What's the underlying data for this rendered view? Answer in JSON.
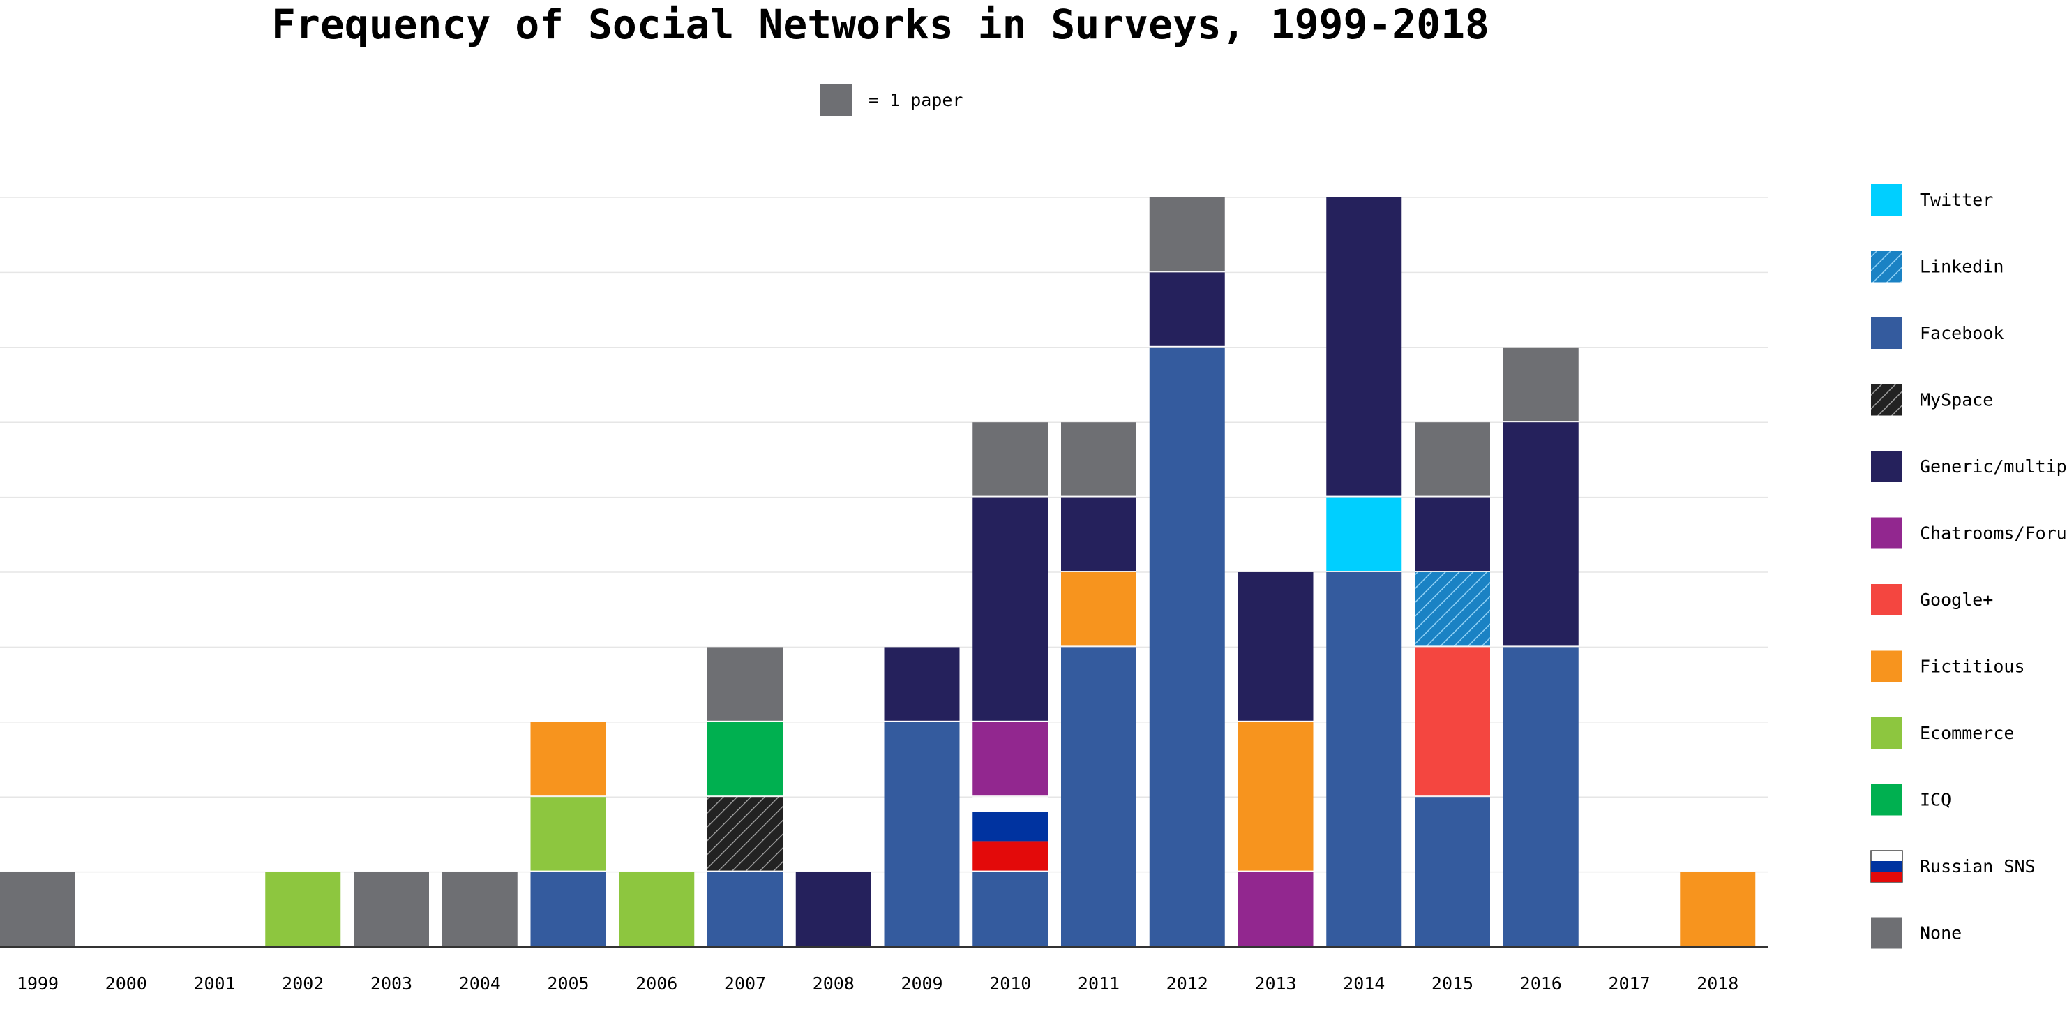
{
  "chart_data": {
    "type": "bar",
    "title": "Frequency of Social Networks in Surveys, 1999-2018",
    "unit_label": "= 1 paper",
    "unit_color": "#6e6f73",
    "categories": [
      "1999",
      "2000",
      "2001",
      "2002",
      "2003",
      "2004",
      "2005",
      "2006",
      "2007",
      "2008",
      "2009",
      "2010",
      "2011",
      "2012",
      "2013",
      "2014",
      "2015",
      "2016",
      "2017",
      "2018"
    ],
    "ylim": [
      0,
      10
    ],
    "grid": true,
    "legend_position": "right",
    "series": [
      {
        "name": "Facebook",
        "color": "#345b9e",
        "pattern": "solid",
        "values": [
          0,
          0,
          0,
          0,
          0,
          0,
          1,
          0,
          1,
          0,
          3,
          1,
          4,
          8,
          0,
          5,
          2,
          4,
          0,
          0
        ]
      },
      {
        "name": "Russian SNS",
        "color": "#e30a0a",
        "pattern": "flag",
        "values": [
          0,
          0,
          0,
          0,
          0,
          0,
          0,
          0,
          0,
          0,
          0,
          1,
          0,
          0,
          0,
          0,
          0,
          0,
          0,
          0
        ]
      },
      {
        "name": "Ecommerce",
        "color": "#8dc63f",
        "pattern": "solid",
        "values": [
          0,
          0,
          0,
          1,
          0,
          0,
          1,
          1,
          0,
          0,
          0,
          0,
          0,
          0,
          0,
          0,
          0,
          0,
          0,
          0
        ]
      },
      {
        "name": "MySpace",
        "color": "#222222",
        "pattern": "hatch-dark",
        "values": [
          0,
          0,
          0,
          0,
          0,
          0,
          0,
          0,
          1,
          0,
          0,
          0,
          0,
          0,
          0,
          0,
          0,
          0,
          0,
          0
        ]
      },
      {
        "name": "Chatrooms/Forums",
        "color": "#92278f",
        "pattern": "solid",
        "values": [
          0,
          0,
          0,
          0,
          0,
          0,
          0,
          0,
          0,
          0,
          0,
          1,
          0,
          0,
          1,
          0,
          0,
          0,
          0,
          0
        ]
      },
      {
        "name": "Google+",
        "color": "#f44640",
        "pattern": "solid",
        "values": [
          0,
          0,
          0,
          0,
          0,
          0,
          0,
          0,
          0,
          0,
          0,
          0,
          0,
          0,
          0,
          0,
          2,
          0,
          0,
          0
        ]
      },
      {
        "name": "Linkedin",
        "color": "#1a82c4",
        "pattern": "hatch-light",
        "values": [
          0,
          0,
          0,
          0,
          0,
          0,
          0,
          0,
          0,
          0,
          0,
          0,
          0,
          0,
          0,
          0,
          1,
          0,
          0,
          0
        ]
      },
      {
        "name": "Fictitious",
        "color": "#f7941e",
        "pattern": "solid",
        "values": [
          0,
          0,
          0,
          0,
          0,
          0,
          1,
          0,
          0,
          0,
          0,
          0,
          1,
          0,
          2,
          0,
          0,
          0,
          0,
          1
        ]
      },
      {
        "name": "ICQ",
        "color": "#00b050",
        "pattern": "solid",
        "values": [
          0,
          0,
          0,
          0,
          0,
          0,
          0,
          0,
          1,
          0,
          0,
          0,
          0,
          0,
          0,
          0,
          0,
          0,
          0,
          0
        ]
      },
      {
        "name": "Twitter",
        "color": "#00cfff",
        "pattern": "solid",
        "values": [
          0,
          0,
          0,
          0,
          0,
          0,
          0,
          0,
          0,
          0,
          0,
          0,
          0,
          0,
          0,
          1,
          0,
          0,
          0,
          0
        ]
      },
      {
        "name": "Generic/multiple",
        "color": "#25215c",
        "pattern": "solid",
        "values": [
          0,
          0,
          0,
          0,
          0,
          0,
          0,
          0,
          0,
          1,
          1,
          3,
          1,
          1,
          2,
          4,
          1,
          3,
          0,
          0
        ]
      },
      {
        "name": "None",
        "color": "#6e6f73",
        "pattern": "solid",
        "values": [
          1,
          0,
          0,
          0,
          1,
          1,
          0,
          0,
          1,
          0,
          0,
          1,
          1,
          1,
          0,
          0,
          1,
          1,
          0,
          0
        ]
      }
    ],
    "legend": [
      {
        "name": "Twitter",
        "color": "#00cfff",
        "pattern": "solid"
      },
      {
        "name": "Linkedin",
        "color": "#1a82c4",
        "pattern": "hatch-light"
      },
      {
        "name": "Facebook",
        "color": "#345b9e",
        "pattern": "solid"
      },
      {
        "name": "MySpace",
        "color": "#222222",
        "pattern": "hatch-dark"
      },
      {
        "name": "Generic/multiple",
        "color": "#25215c",
        "pattern": "solid"
      },
      {
        "name": "Chatrooms/Forums",
        "color": "#92278f",
        "pattern": "solid"
      },
      {
        "name": "Google+",
        "color": "#f44640",
        "pattern": "solid"
      },
      {
        "name": "Fictitious",
        "color": "#f7941e",
        "pattern": "solid"
      },
      {
        "name": "Ecommerce",
        "color": "#8dc63f",
        "pattern": "solid"
      },
      {
        "name": "ICQ",
        "color": "#00b050",
        "pattern": "solid"
      },
      {
        "name": "Russian SNS",
        "color": "#e30a0a",
        "pattern": "flag"
      },
      {
        "name": "None",
        "color": "#6e6f73",
        "pattern": "solid"
      }
    ]
  }
}
